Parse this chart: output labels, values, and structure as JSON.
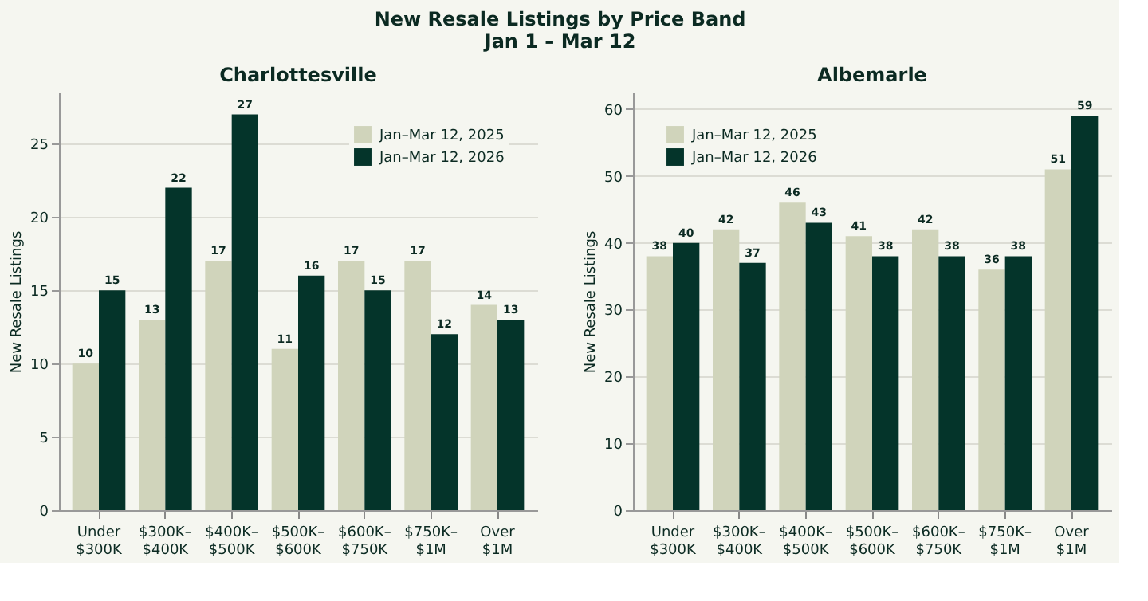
{
  "chart_data": [
    {
      "type": "bar",
      "title": "Charlottesville",
      "annotations": [
        "New Resale Listings by Price Band",
        "Jan 1 – Mar 12"
      ],
      "ylabel": "New Resale Listings",
      "categories": [
        "Under\n$300K",
        "$300K–\n$400K",
        "$400K–\n$500K",
        "$500K–\n$600K",
        "$600K–\n$750K",
        "$750K–\n$1M",
        "Over\n$1M"
      ],
      "series": [
        {
          "name": "Jan–Mar 12, 2025",
          "color": "#d0d4bb",
          "values": [
            10,
            13,
            17,
            11,
            17,
            17,
            14
          ]
        },
        {
          "name": "Jan–Mar 12, 2026",
          "color": "#04342a",
          "values": [
            15,
            22,
            27,
            16,
            15,
            12,
            13
          ]
        }
      ],
      "ylim": [
        0,
        28.5
      ],
      "yticks": [
        0,
        5,
        10,
        15,
        20,
        25
      ],
      "grid": "y",
      "legend": "top right",
      "data_labels": true
    },
    {
      "type": "bar",
      "title": "Albemarle",
      "ylabel": "New Resale Listings",
      "categories": [
        "Under\n$300K",
        "$300K–\n$400K",
        "$400K–\n$500K",
        "$500K–\n$600K",
        "$600K–\n$750K",
        "$750K–\n$1M",
        "Over\n$1M"
      ],
      "series": [
        {
          "name": "Jan–Mar 12, 2025",
          "color": "#d0d4bb",
          "values": [
            38,
            42,
            46,
            41,
            42,
            36,
            51
          ]
        },
        {
          "name": "Jan–Mar 12, 2026",
          "color": "#04342a",
          "values": [
            40,
            37,
            43,
            38,
            38,
            38,
            59
          ]
        }
      ],
      "ylim": [
        0,
        62.5
      ],
      "yticks": [
        0,
        10,
        20,
        30,
        40,
        50,
        60
      ],
      "grid": "y",
      "legend": "top left",
      "data_labels": true
    }
  ]
}
